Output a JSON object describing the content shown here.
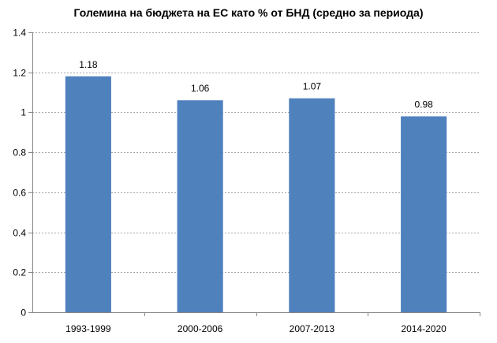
{
  "chart_data": {
    "type": "bar",
    "title": "Големина на бюджета на ЕС като % от БНД (средно за периода)",
    "categories": [
      "1993-1999",
      "2000-2006",
      "2007-2013",
      "2014-2020"
    ],
    "values": [
      1.18,
      1.06,
      1.07,
      0.98
    ],
    "data_labels": [
      "1.18",
      "1.06",
      "1.07",
      "0.98"
    ],
    "yticks": [
      "0",
      "0.2",
      "0.4",
      "0.6",
      "0.8",
      "1",
      "1.2",
      "1.4"
    ],
    "ylim": [
      0,
      1.4
    ],
    "grid": true,
    "legend": false,
    "bar_color": "#4f81bd"
  }
}
